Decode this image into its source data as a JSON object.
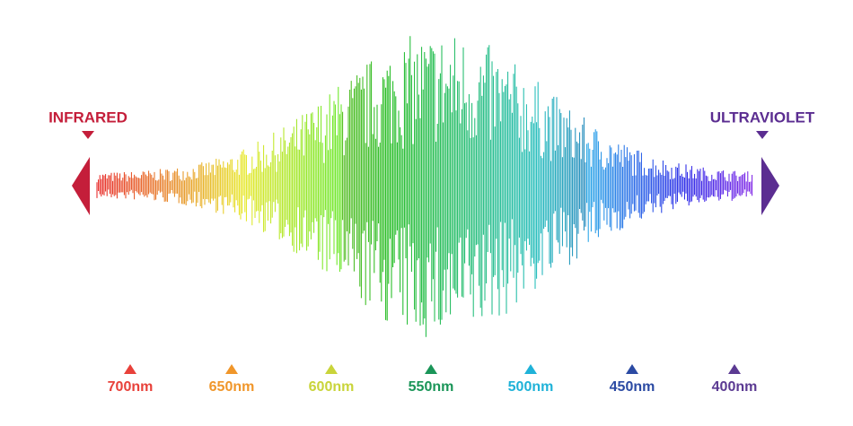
{
  "left_label": "INFRARED",
  "right_label": "ULTRAVIOLET",
  "wavelengths": [
    "700nm",
    "650nm",
    "600nm",
    "550nm",
    "500nm",
    "450nm",
    "400nm"
  ]
}
